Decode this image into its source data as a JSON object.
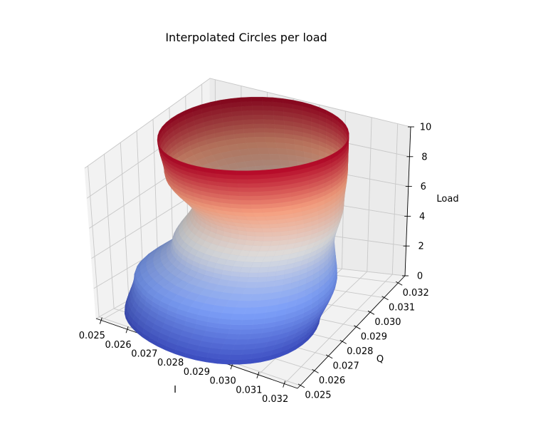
{
  "chart_data": {
    "type": "surface3d",
    "title": "Interpolated Circles per load",
    "xlabel": "I",
    "ylabel": "Q",
    "zlabel": "Load",
    "xlim": [
      0.0248,
      0.0325
    ],
    "ylim": [
      0.0248,
      0.0325
    ],
    "zlim": [
      0,
      10
    ],
    "xticks": [
      "0.025",
      "0.026",
      "0.027",
      "0.028",
      "0.029",
      "0.030",
      "0.031",
      "0.032"
    ],
    "yticks": [
      "0.025",
      "0.026",
      "0.027",
      "0.028",
      "0.029",
      "0.030",
      "0.031",
      "0.032"
    ],
    "zticks": [
      "0",
      "2",
      "4",
      "6",
      "8",
      "10"
    ],
    "colormap": "coolwarm",
    "grid": true,
    "circles": [
      {
        "load": 0,
        "center_i": 0.0281,
        "center_q": 0.0276,
        "radius": 0.0033
      },
      {
        "load": 2,
        "center_i": 0.0283,
        "center_q": 0.0282,
        "radius": 0.0034
      },
      {
        "load": 4,
        "center_i": 0.0287,
        "center_q": 0.0287,
        "radius": 0.0027
      },
      {
        "load": 6,
        "center_i": 0.029,
        "center_q": 0.0292,
        "radius": 0.0025
      },
      {
        "load": 8,
        "center_i": 0.0285,
        "center_q": 0.0293,
        "radius": 0.003
      },
      {
        "load": 10,
        "center_i": 0.0284,
        "center_q": 0.0293,
        "radius": 0.0031
      }
    ]
  }
}
